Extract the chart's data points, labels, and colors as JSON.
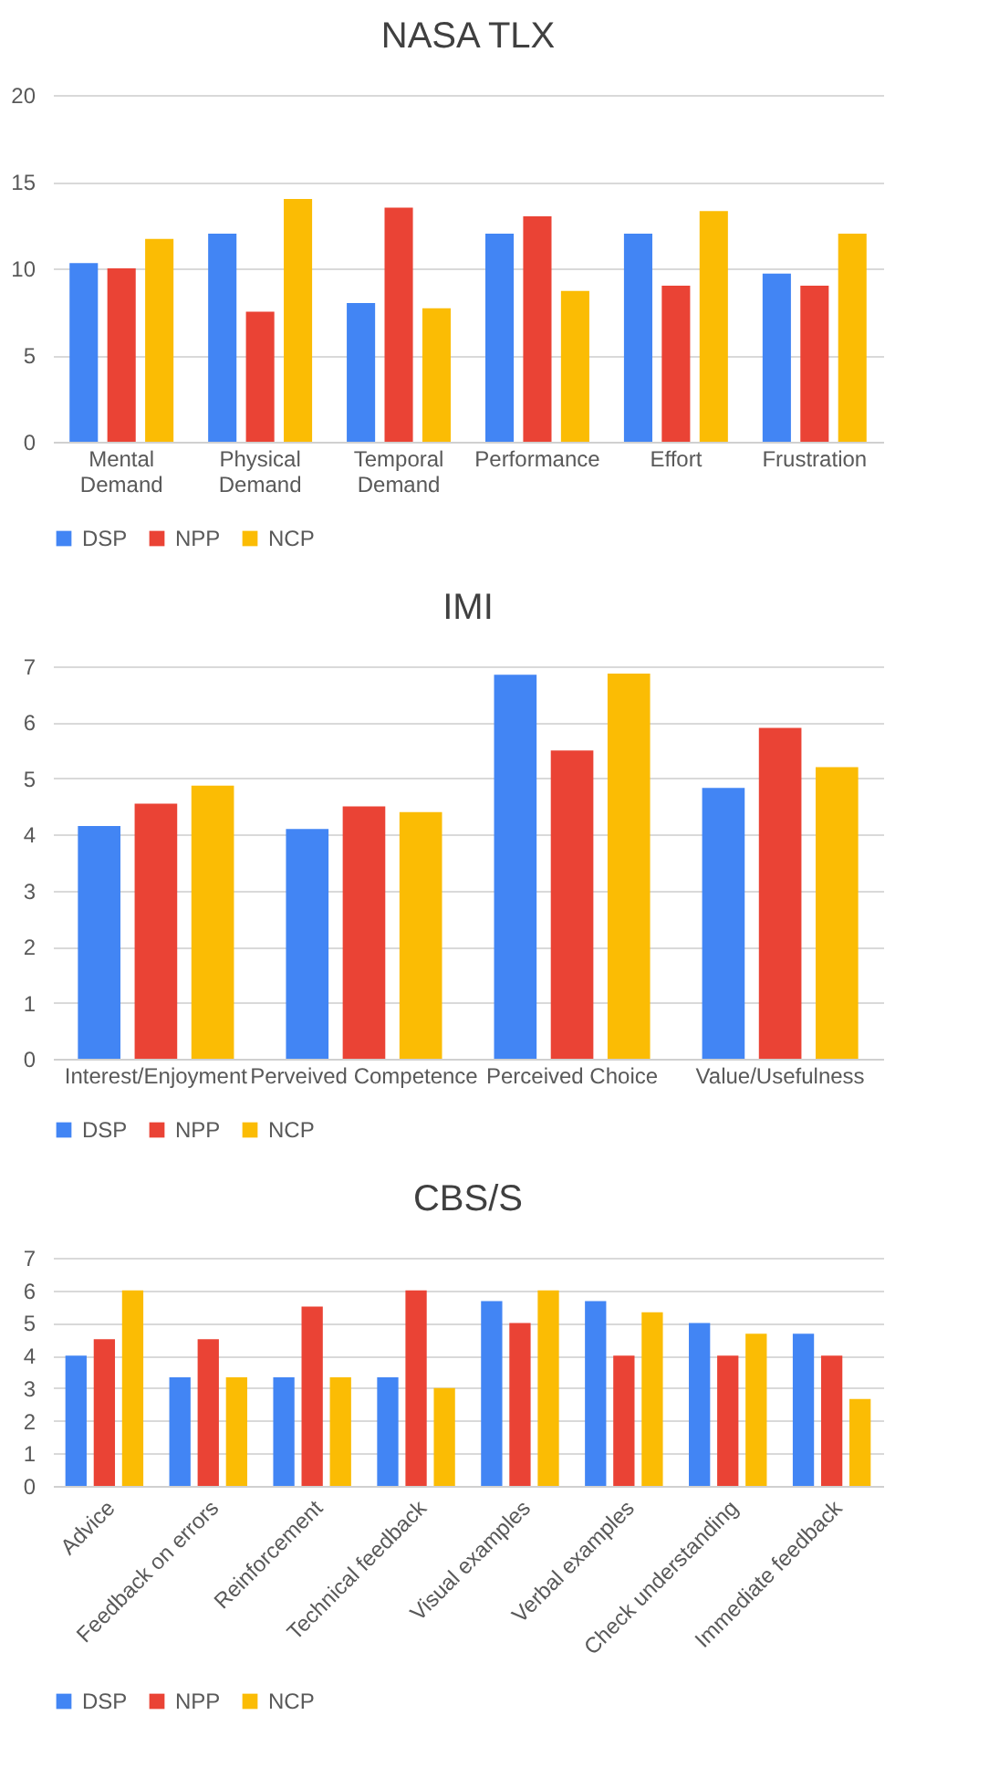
{
  "chart_data": [
    {
      "type": "bar",
      "title": "NASA TLX",
      "categories": [
        "Mental Demand",
        "Physical Demand",
        "Temporal Demand",
        "Performance",
        "Effort",
        "Frustration"
      ],
      "series": [
        {
          "name": "DSP",
          "color": "#4285f4",
          "values": [
            10.3,
            12,
            8,
            12,
            12,
            9.7
          ]
        },
        {
          "name": "NPP",
          "color": "#ea4335",
          "values": [
            10,
            7.5,
            13.5,
            13,
            9,
            9
          ]
        },
        {
          "name": "NCP",
          "color": "#fbbc04",
          "values": [
            11.7,
            14,
            7.7,
            8.7,
            13.3,
            12
          ]
        }
      ],
      "ylim": [
        0,
        20
      ],
      "yticks": [
        0,
        5,
        10,
        15,
        20
      ],
      "grid": "y",
      "legend": "bottom"
    },
    {
      "type": "bar",
      "title": "IMI",
      "categories": [
        "Interest/Enjoyment",
        "Perveived Competence",
        "Perceived Choice",
        "Value/Usefulness"
      ],
      "series": [
        {
          "name": "DSP",
          "color": "#4285f4",
          "values": [
            4.15,
            4.1,
            6.85,
            4.83
          ]
        },
        {
          "name": "NPP",
          "color": "#ea4335",
          "values": [
            4.55,
            4.5,
            5.5,
            5.9
          ]
        },
        {
          "name": "NCP",
          "color": "#fbbc04",
          "values": [
            4.87,
            4.4,
            6.87,
            5.2
          ]
        }
      ],
      "ylim": [
        0,
        7
      ],
      "yticks": [
        0,
        1,
        2,
        3,
        4,
        5,
        6,
        7
      ],
      "grid": "y",
      "legend": "bottom"
    },
    {
      "type": "bar",
      "title": "CBS/S",
      "categories": [
        "Advice",
        "Feedback on errors",
        "Reinforcement",
        "Technical feedback",
        "Visual examples",
        "Verbal examples",
        "Check understanding",
        "Immediate feedback"
      ],
      "series": [
        {
          "name": "DSP",
          "color": "#4285f4",
          "values": [
            4,
            3.33,
            3.33,
            3.33,
            5.67,
            5.67,
            5,
            4.67
          ]
        },
        {
          "name": "NPP",
          "color": "#ea4335",
          "values": [
            4.5,
            4.5,
            5.5,
            6,
            5,
            4,
            4,
            4
          ]
        },
        {
          "name": "NCP",
          "color": "#fbbc04",
          "values": [
            6,
            3.33,
            3.33,
            3,
            6,
            5.33,
            4.67,
            2.67
          ]
        }
      ],
      "ylim": [
        0,
        7
      ],
      "yticks": [
        0,
        1,
        2,
        3,
        4,
        5,
        6,
        7
      ],
      "grid": "y",
      "legend": "bottom"
    }
  ]
}
